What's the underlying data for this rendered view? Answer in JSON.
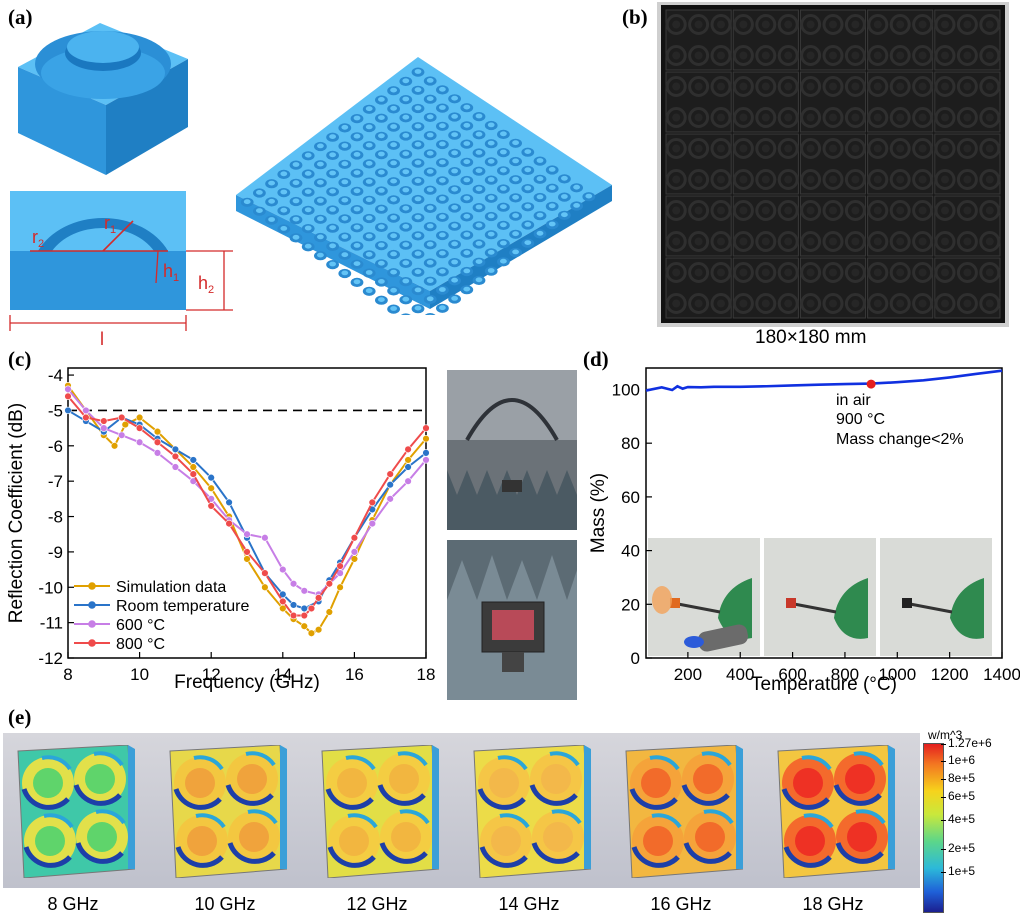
{
  "panels": {
    "a": "(a)",
    "b": "(b)",
    "c": "(c)",
    "d": "(d)",
    "e": "(e)"
  },
  "panel_a": {
    "labels": {
      "r1": "r",
      "r1_sub": "1",
      "r2": "r",
      "r2_sub": "2",
      "h1": "h",
      "h1_sub": "1",
      "h2": "h",
      "h2_sub": "2",
      "l": "l"
    },
    "array_cells": 15
  },
  "panel_b": {
    "caption": "180×180 mm",
    "tiles_per_side": 5
  },
  "colors": {
    "block": "#3ea6e8",
    "block_dark": "#1f7fc4",
    "dim_red": "#d42a2a",
    "sim": "#e0a000",
    "room": "#2a74c9",
    "c600": "#c77ee6",
    "c800": "#ef4b4b",
    "tga": "#1030e0"
  },
  "chart_data": [
    {
      "type": "line",
      "id": "reflection",
      "xlabel": "Frequency (GHz)",
      "ylabel": "Reflection Coefficient (dB)",
      "xlim": [
        8,
        18
      ],
      "ylim": [
        -12,
        -3.8
      ],
      "xticks": [
        8,
        10,
        12,
        14,
        16,
        18
      ],
      "yticks": [
        -12,
        -11,
        -10,
        -9,
        -8,
        -7,
        -6,
        -5,
        -4
      ],
      "reference_line": -5,
      "legend_position": "bottom-left",
      "series": [
        {
          "name": "Simulation data",
          "color": "#e0a000",
          "x": [
            8,
            8.5,
            9,
            9.3,
            9.6,
            10,
            10.5,
            11,
            11.5,
            12,
            12.5,
            13,
            13.5,
            14,
            14.3,
            14.6,
            14.8,
            15,
            15.3,
            15.6,
            16,
            16.5,
            17,
            17.5,
            18
          ],
          "y": [
            -4.3,
            -5.0,
            -5.7,
            -6.0,
            -5.4,
            -5.2,
            -5.6,
            -6.1,
            -6.6,
            -7.2,
            -8.0,
            -9.2,
            -10.0,
            -10.6,
            -10.9,
            -11.1,
            -11.3,
            -11.2,
            -10.7,
            -10.0,
            -9.2,
            -8.1,
            -7.1,
            -6.4,
            -5.8
          ]
        },
        {
          "name": "Room temperature",
          "color": "#2a74c9",
          "x": [
            8,
            8.5,
            9,
            9.5,
            10,
            10.5,
            11,
            11.5,
            12,
            12.5,
            13,
            13.5,
            14,
            14.3,
            14.6,
            15,
            15.3,
            15.6,
            16,
            16.5,
            17,
            17.5,
            18
          ],
          "y": [
            -5.0,
            -5.3,
            -5.6,
            -5.2,
            -5.4,
            -5.8,
            -6.1,
            -6.4,
            -6.9,
            -7.6,
            -8.6,
            -9.6,
            -10.2,
            -10.5,
            -10.6,
            -10.4,
            -9.8,
            -9.3,
            -8.6,
            -7.8,
            -7.1,
            -6.6,
            -6.2
          ]
        },
        {
          "name": "600 °C",
          "color": "#c77ee6",
          "x": [
            8,
            8.5,
            9,
            9.5,
            10,
            10.5,
            11,
            11.5,
            12,
            12.5,
            13,
            13.5,
            14,
            14.3,
            14.6,
            15,
            15.3,
            15.6,
            16,
            16.5,
            17,
            17.5,
            18
          ],
          "y": [
            -4.4,
            -5.0,
            -5.5,
            -5.7,
            -5.9,
            -6.2,
            -6.6,
            -7.0,
            -7.5,
            -8.1,
            -8.5,
            -8.6,
            -9.5,
            -9.9,
            -10.1,
            -10.2,
            -9.9,
            -9.6,
            -9.0,
            -8.2,
            -7.5,
            -7.0,
            -6.4
          ]
        },
        {
          "name": "800 °C",
          "color": "#ef4b4b",
          "x": [
            8,
            8.5,
            9,
            9.5,
            10,
            10.5,
            11,
            11.5,
            12,
            12.5,
            13,
            13.5,
            14,
            14.3,
            14.6,
            14.8,
            15,
            15.3,
            15.6,
            16,
            16.5,
            17,
            17.5,
            18
          ],
          "y": [
            -4.6,
            -5.2,
            -5.3,
            -5.2,
            -5.5,
            -5.9,
            -6.3,
            -6.8,
            -7.7,
            -8.2,
            -9.0,
            -9.6,
            -10.4,
            -10.8,
            -10.8,
            -10.6,
            -10.3,
            -9.9,
            -9.4,
            -8.6,
            -7.6,
            -6.8,
            -6.1,
            -5.5
          ]
        }
      ]
    },
    {
      "type": "line",
      "id": "tga",
      "xlabel": "Temperature (°C)",
      "ylabel": "Mass (%)",
      "xlim": [
        40,
        1400
      ],
      "ylim": [
        0,
        108
      ],
      "xticks": [
        200,
        400,
        600,
        800,
        1000,
        1200,
        1400
      ],
      "yticks": [
        0,
        20,
        40,
        60,
        80,
        100
      ],
      "marker": {
        "x": 900,
        "y": 102
      },
      "annotations": [
        "in air",
        "900 °C",
        "Mass change<2%"
      ],
      "series": [
        {
          "name": "Mass",
          "color": "#1030e0",
          "x": [
            40,
            100,
            140,
            160,
            180,
            200,
            250,
            300,
            400,
            500,
            600,
            700,
            800,
            900,
            1000,
            1100,
            1200,
            1300,
            1400
          ],
          "y": [
            99.6,
            100.8,
            99.8,
            101.2,
            100.3,
            100.9,
            100.8,
            101.0,
            101.0,
            101.2,
            101.5,
            101.8,
            102.0,
            102.2,
            102.7,
            103.4,
            104.5,
            105.8,
            107.0
          ]
        }
      ]
    }
  ],
  "panel_e": {
    "frequencies": [
      "8 GHz",
      "10 GHz",
      "12 GHz",
      "14 GHz",
      "16 GHz",
      "18 GHz"
    ],
    "colorbar_title": "w/m^3",
    "colorbar_ticks": [
      "1.27e+6",
      "1e+6",
      "8e+5",
      "6e+5",
      "4e+5",
      "2e+5",
      "1e+5"
    ]
  }
}
